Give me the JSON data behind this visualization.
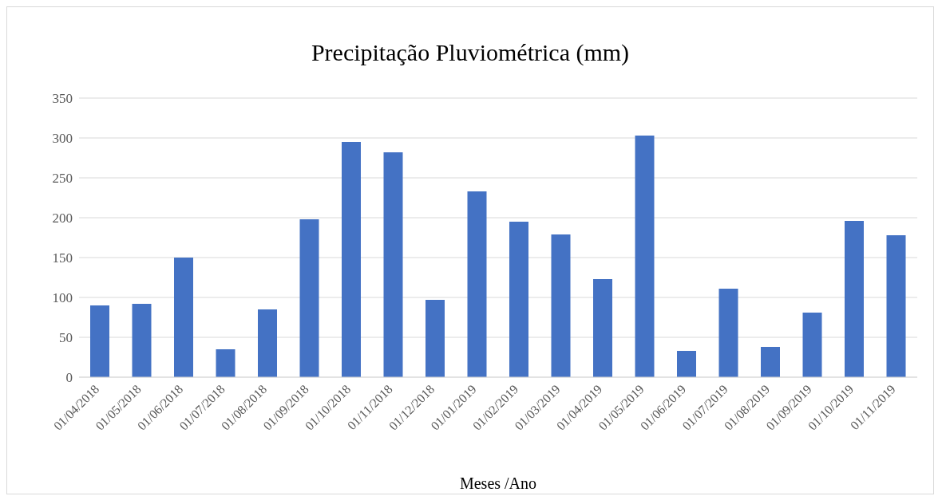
{
  "chart_data": {
    "type": "bar",
    "title": "Precipitação Pluviométrica (mm)",
    "xlabel": "Meses /Ano",
    "categories": [
      "01/04/2018",
      "01/05/2018",
      "01/06/2018",
      "01/07/2018",
      "01/08/2018",
      "01/09/2018",
      "01/10/2018",
      "01/11/2018",
      "01/12/2018",
      "01/01/2019",
      "01/02/2019",
      "01/03/2019",
      "01/04/2019",
      "01/05/2019",
      "01/06/2019",
      "01/07/2019",
      "01/08/2019",
      "01/09/2019",
      "01/10/2019",
      "01/11/2019"
    ],
    "values": [
      90,
      92,
      150,
      35,
      85,
      198,
      295,
      282,
      97,
      233,
      195,
      179,
      123,
      303,
      33,
      111,
      38,
      81,
      196,
      178
    ],
    "color": "#4472c4",
    "ylim": [
      0,
      350
    ],
    "yticks": [
      0,
      50,
      100,
      150,
      200,
      250,
      300,
      350
    ],
    "grid": "y"
  }
}
